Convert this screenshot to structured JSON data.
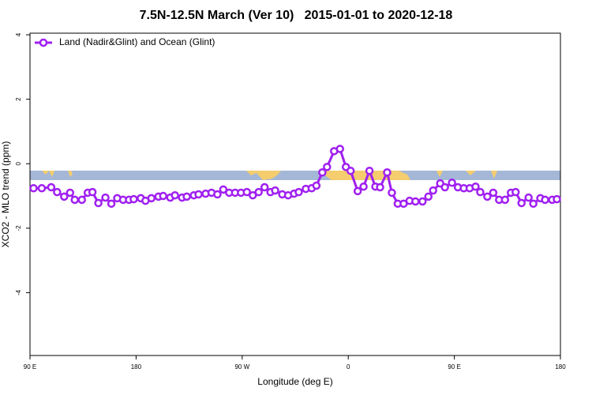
{
  "chart_data": {
    "type": "line",
    "title": "7.5N-12.5N March (Ver 10)   2015-01-01 to 2020-12-18",
    "x_label": "Longitude (deg E)",
    "y_label": "XCO2 - MLO trend (ppm)",
    "xlim": [
      90,
      540
    ],
    "ylim": [
      -5.95,
      4.05
    ],
    "xticks": [
      {
        "value": 90,
        "label": "90 E"
      },
      {
        "value": 180,
        "label": "180"
      },
      {
        "value": 270,
        "label": "90 W"
      },
      {
        "value": 360,
        "label": "0"
      },
      {
        "value": 450,
        "label": "90 E"
      },
      {
        "value": 540,
        "label": "180"
      }
    ],
    "yticks": [
      4,
      2,
      0,
      -2,
      -4
    ],
    "x": [
      93,
      100,
      108,
      113,
      119,
      124,
      128,
      134,
      139,
      143,
      148,
      154,
      159,
      164,
      169,
      174,
      178,
      184,
      188,
      193,
      199,
      203,
      209,
      213,
      219,
      223,
      229,
      233,
      239,
      244,
      249,
      254,
      259,
      264,
      269,
      274,
      279,
      284,
      289,
      294,
      298,
      304,
      309,
      314,
      318,
      324,
      329,
      333,
      338,
      342,
      348,
      353,
      358,
      362,
      368,
      373,
      378,
      383,
      387,
      393,
      397,
      402,
      407,
      412,
      417,
      423,
      428,
      432,
      438,
      442,
      448,
      453,
      458,
      463,
      468,
      472,
      478,
      483,
      488,
      493,
      498,
      502,
      507,
      513,
      517,
      523,
      527,
      533,
      537
    ],
    "series": [
      {
        "name": "Land (Nadir&Glint) and Ocean (Glint)",
        "color": "#a020f0",
        "values": [
          -0.76,
          -0.76,
          -0.73,
          -0.88,
          -1.02,
          -0.9,
          -1.12,
          -1.12,
          -0.9,
          -0.88,
          -1.22,
          -1.05,
          -1.24,
          -1.07,
          -1.12,
          -1.12,
          -1.1,
          -1.07,
          -1.15,
          -1.07,
          -1.02,
          -1.0,
          -1.05,
          -0.98,
          -1.05,
          -1.02,
          -0.98,
          -0.95,
          -0.93,
          -0.9,
          -0.95,
          -0.8,
          -0.9,
          -0.9,
          -0.9,
          -0.88,
          -0.98,
          -0.88,
          -0.73,
          -0.88,
          -0.83,
          -0.95,
          -0.98,
          -0.93,
          -0.88,
          -0.78,
          -0.76,
          -0.68,
          -0.27,
          -0.1,
          0.39,
          0.46,
          -0.1,
          -0.22,
          -0.85,
          -0.71,
          -0.22,
          -0.71,
          -0.73,
          -0.27,
          -0.9,
          -1.24,
          -1.24,
          -1.15,
          -1.17,
          -1.17,
          -1.02,
          -0.83,
          -0.61,
          -0.73,
          -0.59,
          -0.73,
          -0.76,
          -0.76,
          -0.71,
          -0.88,
          -1.02,
          -0.9,
          -1.12,
          -1.12,
          -0.9,
          -0.88,
          -1.22,
          -1.05,
          -1.24,
          -1.07,
          -1.12,
          -1.12,
          -1.1
        ]
      }
    ]
  }
}
